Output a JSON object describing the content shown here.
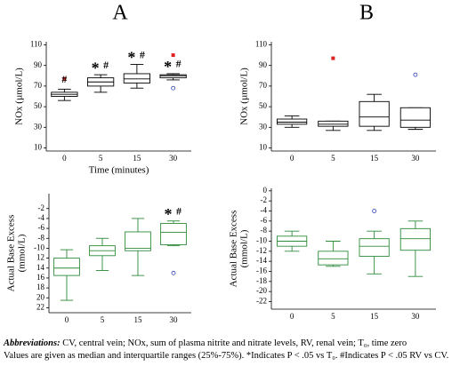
{
  "panel_labels": [
    "A",
    "B"
  ],
  "chart_data": [
    {
      "type": "box",
      "ylabel": [
        "NOx (µmol/L)"
      ],
      "xlabel": "Time (minutes)",
      "color": "#000000",
      "outlier_color": "#2b3fb0",
      "far_outlier_color": "#e02020",
      "categories": [
        "0",
        "5",
        "15",
        "30"
      ],
      "ylim": [
        7,
        113
      ],
      "yticks": [
        10,
        30,
        50,
        70,
        90,
        110
      ],
      "boxes": [
        {
          "min": 56,
          "q1": 60,
          "median": 62,
          "q3": 64,
          "max": 67,
          "outliers": [],
          "far_outliers": [
            77
          ],
          "annotations": [
            "#"
          ]
        },
        {
          "min": 64,
          "q1": 70,
          "median": 74,
          "q3": 78,
          "max": 81,
          "outliers": [],
          "far_outliers": [],
          "annotations": [
            "*",
            "#"
          ]
        },
        {
          "min": 68,
          "q1": 73,
          "median": 77,
          "q3": 82,
          "max": 91,
          "outliers": [],
          "far_outliers": [],
          "annotations": [
            "*",
            "#"
          ]
        },
        {
          "min": 76,
          "q1": 78,
          "median": 80,
          "q3": 81,
          "max": 82,
          "outliers": [
            68
          ],
          "far_outliers": [
            100
          ],
          "annotations": [
            "*",
            "#"
          ]
        }
      ]
    },
    {
      "type": "box",
      "ylabel": [
        "NOx (µmol/L)"
      ],
      "color": "#000000",
      "outlier_color": "#2b3fb0",
      "far_outlier_color": "#e02020",
      "categories": [
        "0",
        "5",
        "15",
        "30"
      ],
      "ylim": [
        7,
        113
      ],
      "yticks": [
        10,
        30,
        50,
        70,
        90,
        110
      ],
      "boxes": [
        {
          "min": 30,
          "q1": 33,
          "median": 35,
          "q3": 38,
          "max": 41,
          "outliers": [],
          "far_outliers": [],
          "annotations": []
        },
        {
          "min": 27,
          "q1": 31,
          "median": 33,
          "q3": 36,
          "max": 36,
          "outliers": [],
          "far_outliers": [
            97
          ],
          "annotations": []
        },
        {
          "min": 27,
          "q1": 31,
          "median": 40,
          "q3": 55,
          "max": 62,
          "outliers": [],
          "far_outliers": [],
          "annotations": []
        },
        {
          "min": 28,
          "q1": 30,
          "median": 37,
          "q3": 49,
          "max": 49,
          "outliers": [
            81
          ],
          "far_outliers": [],
          "annotations": []
        }
      ]
    },
    {
      "type": "box",
      "ylabel": [
        "Actual Base Excess",
        "(mmol/L)"
      ],
      "color": "#2e8b3a",
      "outlier_color": "#2b3fb0",
      "far_outlier_color": "#e02020",
      "categories": [
        "0",
        "5",
        "15",
        "30"
      ],
      "ylim": [
        -23,
        1
      ],
      "yticks": [
        -2,
        -4,
        -6,
        -8,
        -10,
        {
          "value": -12,
          "label": "12"
        },
        {
          "value": -14,
          "label": "14"
        },
        {
          "value": -16,
          "label": "16"
        },
        {
          "value": -18,
          "label": "18"
        },
        {
          "value": -20,
          "label": "20"
        },
        {
          "value": -22,
          "label": "22"
        }
      ],
      "boxes": [
        {
          "min": -20.5,
          "q1": -15.5,
          "median": -14,
          "q3": -12,
          "max": -10.3,
          "outliers": [],
          "far_outliers": [],
          "annotations": []
        },
        {
          "min": -14.5,
          "q1": -11.5,
          "median": -10.5,
          "q3": -9.5,
          "max": -8,
          "outliers": [],
          "far_outliers": [],
          "annotations": []
        },
        {
          "min": -15.5,
          "q1": -10.5,
          "median": -10,
          "q3": -6.7,
          "max": -4,
          "outliers": [],
          "far_outliers": [],
          "annotations": []
        },
        {
          "min": -9.5,
          "q1": -9.3,
          "median": -6.8,
          "q3": -5,
          "max": -4.5,
          "outliers": [
            -15
          ],
          "far_outliers": [],
          "annotations": [
            "*",
            "#"
          ]
        }
      ]
    },
    {
      "type": "box",
      "ylabel": [
        "Actual Base Excess",
        "(mmol/L)"
      ],
      "color": "#2e8b3a",
      "outlier_color": "#2b3fb0",
      "far_outlier_color": "#e02020",
      "categories": [
        "0",
        "5",
        "15",
        "30"
      ],
      "ylim": [
        -23.5,
        0.5
      ],
      "yticks": [
        0,
        -2,
        -4,
        -6,
        -8,
        -10,
        -12,
        -14,
        -16,
        -18,
        -20,
        -22
      ],
      "boxes": [
        {
          "min": -12,
          "q1": -11,
          "median": -10,
          "q3": -9,
          "max": -8,
          "outliers": [],
          "far_outliers": [],
          "annotations": []
        },
        {
          "min": -15,
          "q1": -14.7,
          "median": -13.5,
          "q3": -12,
          "max": -10,
          "outliers": [],
          "far_outliers": [],
          "annotations": []
        },
        {
          "min": -16.5,
          "q1": -13,
          "median": -11,
          "q3": -9.5,
          "max": -8,
          "outliers": [
            -4
          ],
          "far_outliers": [],
          "annotations": []
        },
        {
          "min": -17,
          "q1": -11.8,
          "median": -9.5,
          "q3": -7.5,
          "max": -6,
          "outliers": [],
          "far_outliers": [],
          "annotations": []
        }
      ]
    }
  ],
  "caption": {
    "lead": "Abbreviations:",
    "text": "CV, central vein; NOx, sum of plasma nitrite and nitrate levels, RV, renal vein; T₀, time zero",
    "notes": "Values are given as median and interquartile ranges (25%-75%). *Indicates P < .05 vs T₀. #Indicates P < .05 RV vs CV."
  }
}
